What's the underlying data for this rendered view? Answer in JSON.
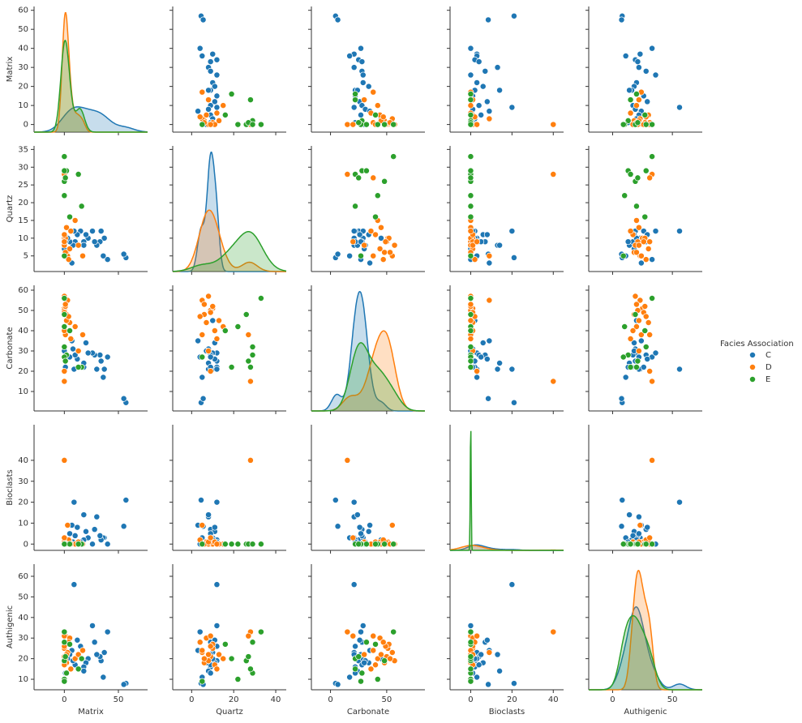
{
  "chart_data": {
    "type": "pairplot",
    "legend_title": "Facies Association",
    "legend": "right",
    "variables": [
      {
        "name": "Matrix",
        "xlim": [
          -28,
          77
        ],
        "xticks": [
          0,
          50
        ],
        "ylim": [
          -4,
          62
        ],
        "yticks": [
          0,
          10,
          20,
          30,
          40,
          50,
          60
        ]
      },
      {
        "name": "Quartz",
        "xlim": [
          -9,
          45
        ],
        "xticks": [
          0,
          20,
          40
        ],
        "ylim": [
          0.6,
          36
        ],
        "yticks": [
          5,
          10,
          15,
          20,
          25,
          30,
          35
        ]
      },
      {
        "name": "Carbonate",
        "xlim": [
          -17,
          84
        ],
        "xticks": [
          0,
          50
        ],
        "ylim": [
          0.4,
          62.4
        ],
        "yticks": [
          10,
          20,
          30,
          40,
          50,
          60
        ]
      },
      {
        "name": "Bioclasts",
        "xlim": [
          -10,
          45
        ],
        "xticks": [
          0,
          20,
          40
        ],
        "ylim": [
          -3,
          57
        ],
        "yticks": [
          0,
          10,
          20,
          30,
          40
        ]
      },
      {
        "name": "Authigenic",
        "xlim": [
          -20,
          75
        ],
        "xticks": [
          0,
          50
        ],
        "ylim": [
          4.9,
          65.9
        ],
        "yticks": [
          10,
          20,
          30,
          40,
          50,
          60
        ]
      }
    ],
    "series": [
      {
        "name": "C",
        "color": "#1f77b4",
        "values": [
          [
            57,
            4.5,
            4.5,
            21,
            8
          ],
          [
            55,
            5.5,
            6.5,
            8.5,
            7.5
          ],
          [
            40,
            4,
            27,
            0,
            33
          ],
          [
            37,
            10,
            21,
            3,
            23
          ],
          [
            36,
            5,
            17,
            3,
            11
          ],
          [
            34,
            12,
            25,
            2,
            19
          ],
          [
            33,
            9,
            28,
            4,
            21
          ],
          [
            30,
            8,
            21,
            13,
            22
          ],
          [
            28,
            9,
            28,
            7,
            28
          ],
          [
            26,
            12,
            29,
            0,
            36
          ],
          [
            22,
            10,
            29,
            3,
            20
          ],
          [
            20,
            11,
            34,
            6,
            18
          ],
          [
            18,
            9,
            22,
            2,
            16
          ],
          [
            18,
            8,
            24,
            14,
            14
          ],
          [
            15,
            12,
            22,
            1,
            26
          ],
          [
            12,
            11,
            26,
            8,
            29
          ],
          [
            10,
            9,
            28,
            4,
            17
          ],
          [
            9,
            12,
            21,
            20,
            56
          ],
          [
            8,
            8,
            31,
            1,
            19
          ],
          [
            7,
            3,
            35,
            9,
            24
          ],
          [
            5,
            9,
            27,
            5,
            22
          ],
          [
            3,
            10,
            45,
            2,
            20
          ],
          [
            1,
            9,
            22,
            1,
            13
          ],
          [
            0,
            7,
            30,
            0,
            18
          ]
        ]
      },
      {
        "name": "D",
        "color": "#ff7f0e",
        "values": [
          [
            0,
            28,
            15,
            40,
            33
          ],
          [
            1,
            27,
            38,
            0,
            31
          ],
          [
            2,
            6,
            48,
            0,
            18
          ],
          [
            0,
            10,
            51,
            1,
            25
          ],
          [
            0,
            9,
            50,
            0,
            21
          ],
          [
            3,
            5,
            55,
            9,
            23
          ],
          [
            0,
            8,
            57,
            0,
            19
          ],
          [
            5,
            7,
            44,
            1,
            30
          ],
          [
            1,
            10,
            52,
            0,
            27
          ],
          [
            0,
            9,
            49,
            1,
            26
          ],
          [
            10,
            15,
            42,
            0,
            20
          ],
          [
            2,
            13,
            45,
            0,
            22
          ],
          [
            17,
            5,
            38,
            0,
            24
          ],
          [
            4,
            4,
            47,
            2,
            28
          ],
          [
            0,
            11,
            40,
            1,
            17
          ],
          [
            6,
            12,
            36,
            0,
            15
          ],
          [
            1,
            6,
            53,
            0,
            20
          ],
          [
            13,
            8,
            30,
            1,
            22
          ],
          [
            0,
            9,
            20,
            3,
            31
          ]
        ]
      },
      {
        "name": "E",
        "color": "#2ca02c",
        "values": [
          [
            0,
            33,
            56,
            0,
            33
          ],
          [
            0,
            26,
            48,
            0,
            19
          ],
          [
            2,
            29,
            28,
            0,
            13
          ],
          [
            16,
            19,
            22,
            0,
            20
          ],
          [
            0,
            22,
            42,
            0,
            10
          ],
          [
            13,
            28,
            22,
            0,
            15
          ],
          [
            0,
            5,
            27,
            0,
            9
          ],
          [
            1,
            27,
            25,
            0,
            21
          ],
          [
            5,
            16,
            40,
            0,
            27
          ],
          [
            0,
            29,
            32,
            0,
            28
          ]
        ]
      }
    ]
  }
}
